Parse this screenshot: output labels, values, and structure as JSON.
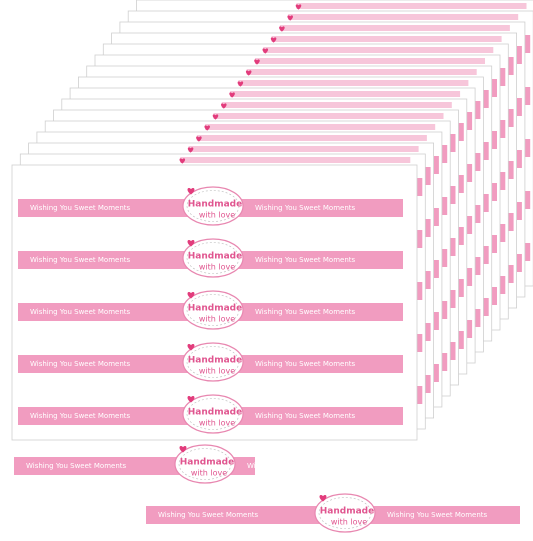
{
  "strip": {
    "text": "Wishing You Sweet Moments"
  },
  "badge": {
    "line1": "Handmade",
    "line2": "with love"
  }
}
